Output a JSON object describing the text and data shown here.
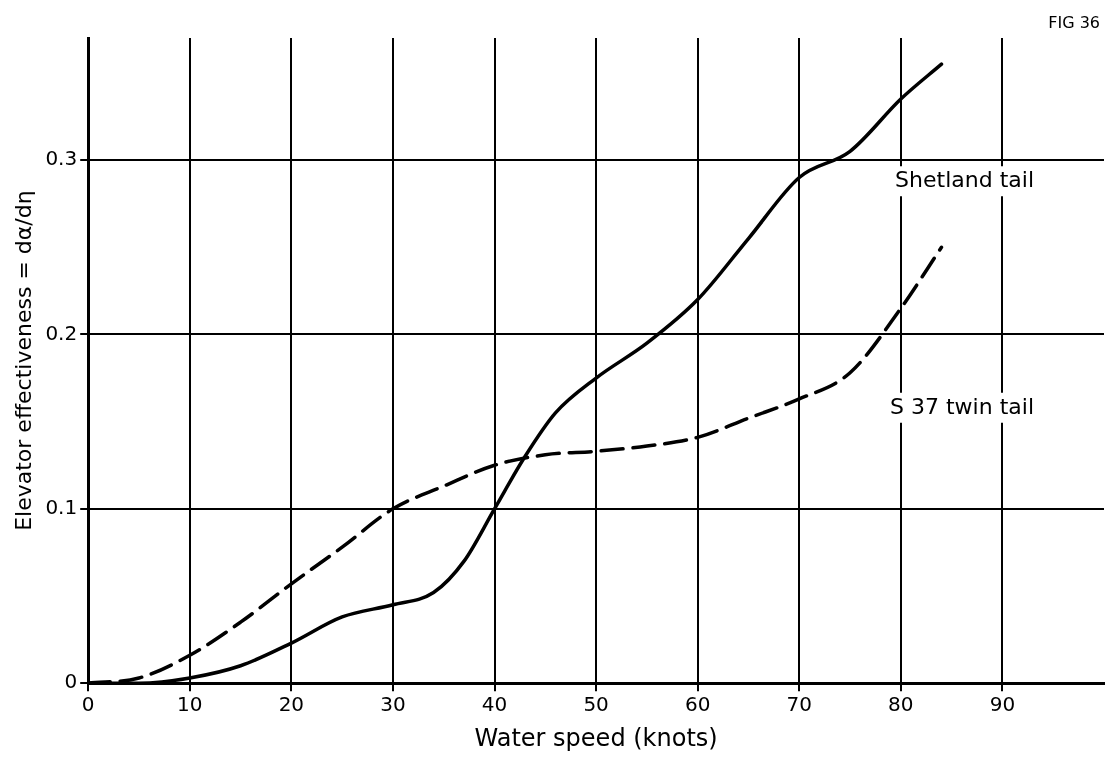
{
  "chart_data": {
    "type": "line",
    "xlabel": "Water speed (knots)",
    "ylabel": "Elevator effectiveness = dα/dη",
    "annotations": [
      "FIG 36"
    ],
    "xlim": [
      0,
      100
    ],
    "xticks": [
      0,
      10,
      20,
      30,
      40,
      50,
      60,
      70,
      80,
      90
    ],
    "ylim": [
      0,
      0.37
    ],
    "yticks": [
      0,
      0.1,
      0.2,
      0.3
    ],
    "grid": true,
    "legend": false,
    "marker": "none",
    "series": [
      {
        "name": "Shetland tail",
        "color": "#000000",
        "line_style": "solid",
        "x": [
          0,
          5,
          10,
          15,
          20,
          25,
          30,
          34,
          37,
          40,
          43,
          46,
          50,
          55,
          60,
          65,
          70,
          75,
          80,
          84
        ],
        "values": [
          0,
          0,
          0.003,
          0.01,
          0.023,
          0.038,
          0.045,
          0.052,
          0.07,
          0.1,
          0.13,
          0.155,
          0.175,
          0.195,
          0.22,
          0.255,
          0.29,
          0.305,
          0.335,
          0.355
        ]
      },
      {
        "name": "S 37 twin tail",
        "color": "#000000",
        "line_style": "dashed",
        "x": [
          0,
          5,
          10,
          15,
          20,
          25,
          30,
          35,
          40,
          45,
          50,
          55,
          60,
          65,
          70,
          75,
          80,
          84
        ],
        "values": [
          0,
          0.003,
          0.016,
          0.035,
          0.057,
          0.078,
          0.1,
          0.113,
          0.125,
          0.131,
          0.133,
          0.136,
          0.141,
          0.152,
          0.163,
          0.178,
          0.215,
          0.25
        ]
      }
    ]
  }
}
